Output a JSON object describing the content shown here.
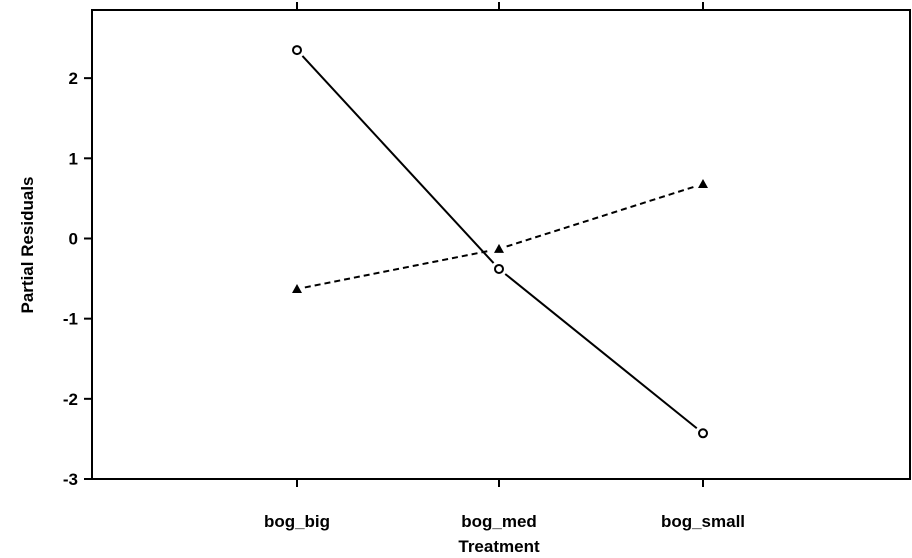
{
  "chart_data": {
    "type": "line",
    "title": "",
    "xlabel": "Treatment",
    "ylabel": "Partial Residuals",
    "categories": [
      "bog_big",
      "bog_med",
      "bog_small"
    ],
    "ylim": [
      -3,
      2.85
    ],
    "yticks": [
      -3,
      -2,
      -1,
      0,
      1,
      2
    ],
    "grid": false,
    "legend": "none",
    "series": [
      {
        "values": [
          2.35,
          -0.38,
          -2.43
        ],
        "marker": "circle-open",
        "line": "solid",
        "color": "#000000"
      },
      {
        "values": [
          -0.63,
          -0.13,
          0.68
        ],
        "marker": "triangle-filled",
        "line": "dashed",
        "color": "#000000"
      }
    ]
  }
}
